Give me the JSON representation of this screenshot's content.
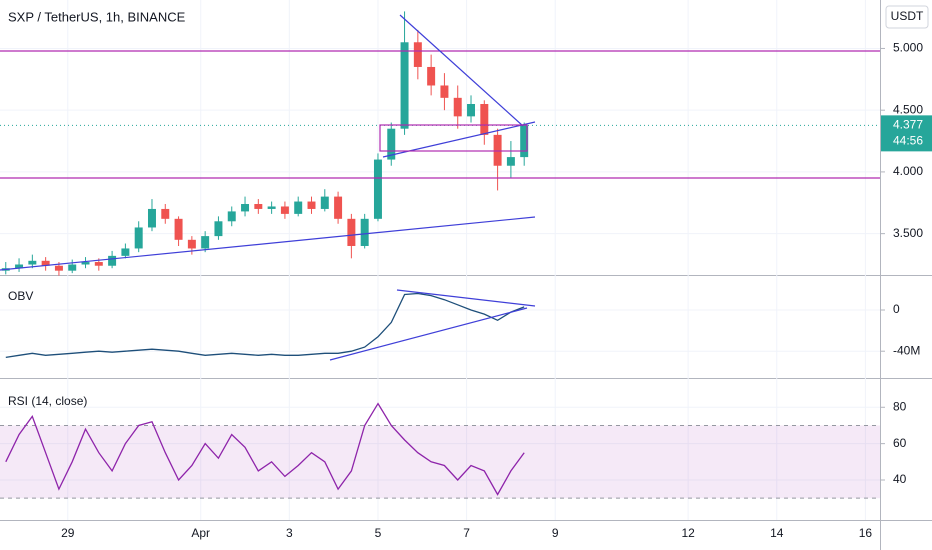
{
  "chart_data": [
    {
      "type": "candlestick",
      "title": "SXP / TetherUS, 1h, BINANCE",
      "unit": "USDT",
      "x": [
        27.6,
        27.9,
        28.2,
        28.5,
        28.8,
        29.1,
        29.4,
        29.7,
        30.0,
        30.3,
        30.6,
        30.9,
        31.2,
        31.5,
        31.8,
        32.1,
        32.4,
        32.7,
        33.0,
        33.3,
        33.6,
        33.9,
        34.2,
        34.5,
        34.8,
        35.1,
        35.4,
        35.7,
        36.0,
        36.3,
        36.6,
        36.9,
        37.2,
        37.5,
        37.8,
        38.1,
        38.4,
        38.7,
        39.0,
        39.3
      ],
      "open": [
        3.2,
        3.22,
        3.25,
        3.28,
        3.24,
        3.2,
        3.25,
        3.27,
        3.24,
        3.32,
        3.38,
        3.55,
        3.7,
        3.62,
        3.45,
        3.38,
        3.48,
        3.6,
        3.68,
        3.74,
        3.7,
        3.72,
        3.66,
        3.76,
        3.7,
        3.8,
        3.62,
        3.4,
        3.62,
        4.1,
        4.35,
        5.05,
        4.85,
        4.7,
        4.6,
        4.45,
        4.55,
        4.3,
        4.05,
        4.12
      ],
      "high": [
        3.27,
        3.3,
        3.33,
        3.31,
        3.27,
        3.29,
        3.31,
        3.3,
        3.36,
        3.42,
        3.6,
        3.78,
        3.74,
        3.64,
        3.48,
        3.52,
        3.64,
        3.72,
        3.8,
        3.78,
        3.76,
        3.76,
        3.8,
        3.8,
        3.86,
        3.84,
        3.66,
        3.66,
        4.15,
        4.4,
        5.3,
        5.15,
        4.95,
        4.8,
        4.7,
        4.62,
        4.58,
        4.35,
        4.25,
        4.4
      ],
      "low": [
        3.17,
        3.19,
        3.22,
        3.2,
        3.16,
        3.18,
        3.22,
        3.2,
        3.22,
        3.3,
        3.35,
        3.52,
        3.58,
        3.4,
        3.33,
        3.35,
        3.45,
        3.56,
        3.64,
        3.66,
        3.66,
        3.62,
        3.64,
        3.66,
        3.68,
        3.58,
        3.3,
        3.38,
        3.6,
        4.05,
        4.3,
        4.75,
        4.62,
        4.5,
        4.35,
        4.4,
        4.22,
        3.85,
        3.95,
        4.05
      ],
      "close": [
        3.22,
        3.25,
        3.28,
        3.24,
        3.2,
        3.25,
        3.27,
        3.24,
        3.32,
        3.38,
        3.55,
        3.7,
        3.62,
        3.45,
        3.38,
        3.48,
        3.6,
        3.68,
        3.74,
        3.7,
        3.72,
        3.66,
        3.76,
        3.7,
        3.8,
        3.62,
        3.4,
        3.62,
        4.1,
        4.35,
        5.05,
        4.85,
        4.7,
        4.6,
        4.45,
        4.55,
        4.3,
        4.05,
        4.12,
        4.377
      ],
      "up_color": "#26a69a",
      "down_color": "#ef5350",
      "last_price": 4.377,
      "countdown": "44:56",
      "xlim": [
        27.47,
        47.33
      ],
      "xticks": [
        29,
        {
          "value": 32,
          "label": "Apr"
        },
        {
          "value": 34,
          "label": "3"
        },
        {
          "value": 36,
          "label": "5"
        },
        {
          "value": 38,
          "label": "7"
        },
        {
          "value": 40,
          "label": "9"
        },
        {
          "value": 43,
          "label": "12"
        },
        {
          "value": 45,
          "label": "14"
        },
        {
          "value": 47,
          "label": "16"
        }
      ],
      "ylim": [
        3.165,
        5.36
      ],
      "yticks": [
        {
          "value": 3.5,
          "label": "3.500"
        },
        {
          "value": 4,
          "label": "4.000"
        },
        {
          "value": 4.5,
          "label": "4.500"
        },
        {
          "value": 5,
          "label": "5.000"
        }
      ]
    },
    {
      "type": "line",
      "title": "OBV",
      "color": "#1e4f7a",
      "x": [
        27.6,
        27.9,
        28.2,
        28.5,
        28.8,
        29.1,
        29.4,
        29.7,
        30.0,
        30.3,
        30.6,
        30.9,
        31.2,
        31.5,
        31.8,
        32.1,
        32.4,
        32.7,
        33.0,
        33.3,
        33.6,
        33.9,
        34.2,
        34.5,
        34.8,
        35.1,
        35.4,
        35.7,
        36.0,
        36.3,
        36.6,
        36.9,
        37.2,
        37.5,
        37.8,
        38.1,
        38.4,
        38.7,
        39.0,
        39.3
      ],
      "values": [
        -46,
        -44,
        -42,
        -44,
        -43,
        -42,
        -41,
        -40,
        -41,
        -40,
        -39,
        -38,
        -39,
        -40,
        -42,
        -44,
        -43,
        -42,
        -43,
        -44,
        -43,
        -44,
        -44,
        -43,
        -42,
        -42,
        -40,
        -36,
        -26,
        -12,
        15,
        16,
        14,
        10,
        5,
        0,
        -4,
        -10,
        -2,
        3
      ],
      "xlim": [
        27.47,
        47.33
      ],
      "ylim": [
        -66,
        33
      ],
      "yticks": [
        {
          "value": -40,
          "label": "-40M"
        },
        0
      ]
    },
    {
      "type": "line",
      "title": "RSI (14, close)",
      "color": "#8e24aa",
      "x": [
        27.6,
        27.9,
        28.2,
        28.5,
        28.8,
        29.1,
        29.4,
        29.7,
        30.0,
        30.3,
        30.6,
        30.9,
        31.2,
        31.5,
        31.8,
        32.1,
        32.4,
        32.7,
        33.0,
        33.3,
        33.6,
        33.9,
        34.2,
        34.5,
        34.8,
        35.1,
        35.4,
        35.7,
        36.0,
        36.3,
        36.6,
        36.9,
        37.2,
        37.5,
        37.8,
        38.1,
        38.4,
        38.7,
        39.0,
        39.3
      ],
      "values": [
        50,
        65,
        75,
        55,
        35,
        50,
        68,
        55,
        45,
        60,
        70,
        72,
        55,
        40,
        48,
        60,
        52,
        65,
        58,
        45,
        50,
        42,
        48,
        55,
        50,
        35,
        45,
        70,
        82,
        70,
        62,
        55,
        50,
        48,
        40,
        48,
        45,
        32,
        45,
        55
      ],
      "band": [
        30,
        70
      ],
      "band_color": "#9c27b0",
      "xlim": [
        27.47,
        47.33
      ],
      "ylim": [
        18,
        95
      ],
      "yticks": [
        40,
        60,
        80
      ]
    }
  ]
}
